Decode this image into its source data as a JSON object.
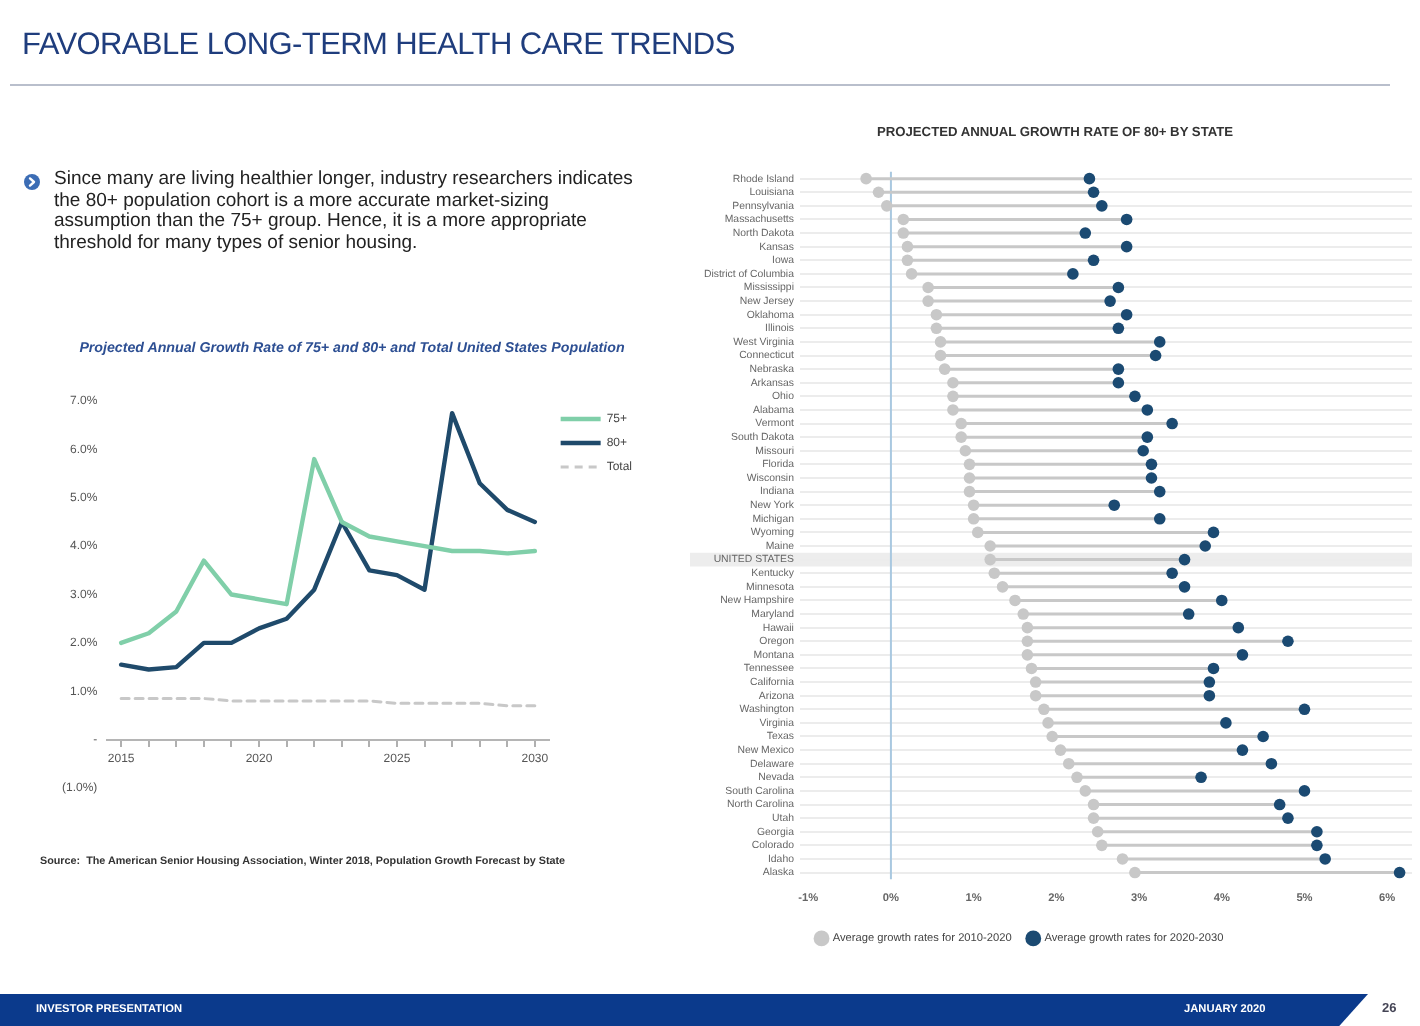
{
  "chart_data": [
    {
      "type": "other",
      "title": "FAVORABLE LONG-TERM HEALTH CARE TRENDS",
      "annotations": [
        "Since many are living healthier longer, industry researchers indicates the 80+ population cohort is a more accurate market-sizing assumption than the 75+ group.  Hence, it is a more appropriate threshold for many types of senior housing.",
        "INVESTOR PRESENTATION",
        "JANUARY 2020",
        "26"
      ]
    },
    {
      "type": "line",
      "title": "Projected Annual Growth Rate of 75+ and 80+ and Total United States Population",
      "categories": [
        "2015",
        null,
        null,
        null,
        null,
        "2020",
        null,
        null,
        null,
        null,
        "2025",
        null,
        null,
        null,
        null,
        "2030"
      ],
      "series": [
        {
          "name": "75+",
          "color": "#80cfa9",
          "values": [
            2.0,
            2.2,
            2.65,
            3.7,
            3.0,
            2.9,
            2.8,
            5.8,
            4.5,
            4.2,
            4.1,
            4.0,
            3.9,
            3.9,
            3.85,
            3.9
          ]
        },
        {
          "name": "80+",
          "color": "#1f4a6b",
          "values": [
            1.55,
            1.45,
            1.5,
            2.0,
            2.0,
            2.3,
            2.5,
            3.1,
            4.5,
            3.5,
            3.4,
            3.1,
            6.75,
            5.3,
            4.75,
            4.5
          ]
        },
        {
          "name": "Total",
          "color": "#c8c8c8",
          "line_style": "dashed",
          "values": [
            0.85,
            0.85,
            0.85,
            0.85,
            0.8,
            0.8,
            0.8,
            0.8,
            0.8,
            0.8,
            0.75,
            0.75,
            0.75,
            0.75,
            0.7,
            0.7
          ]
        }
      ],
      "ylim": [
        -1,
        7
      ],
      "yticks": [
        {
          "value": -1,
          "label": "(1.0%)"
        },
        {
          "value": 0,
          "label": "-"
        },
        {
          "value": 1,
          "label": "1.0%"
        },
        {
          "value": 2,
          "label": "2.0%"
        },
        {
          "value": 3,
          "label": "3.0%"
        },
        {
          "value": 4,
          "label": "4.0%"
        },
        {
          "value": 5,
          "label": "5.0%"
        },
        {
          "value": 6,
          "label": "6.0%"
        },
        {
          "value": 7,
          "label": "7.0%"
        }
      ],
      "legend": "top right",
      "marker": "none",
      "annotations": [
        "Source:  The American Senior Housing Association, Winter 2018, Population Growth Forecast by State"
      ]
    },
    {
      "type": "scatter",
      "orientation": "horizontal",
      "title": "PROJECTED ANNUAL GROWTH RATE OF 80+ BY STATE",
      "categories": [
        "Rhode Island",
        "Louisiana",
        "Pennsylvania",
        "Massachusetts",
        "North Dakota",
        "Kansas",
        "Iowa",
        "District of Columbia",
        "Mississippi",
        "New Jersey",
        "Oklahoma",
        "Illinois",
        "West Virginia",
        "Connecticut",
        "Nebraska",
        "Arkansas",
        "Ohio",
        "Alabama",
        "Vermont",
        "South Dakota",
        "Missouri",
        "Florida",
        "Wisconsin",
        "Indiana",
        "New York",
        "Michigan",
        "Wyoming",
        "Maine",
        "UNITED STATES",
        "Kentucky",
        "Minnesota",
        "New Hampshire",
        "Maryland",
        "Hawaii",
        "Oregon",
        "Montana",
        "Tennessee",
        "California",
        "Arizona",
        "Washington",
        "Virginia",
        "Texas",
        "New Mexico",
        "Delaware",
        "Nevada",
        "South Carolina",
        "North Carolina",
        "Utah",
        "Georgia",
        "Colorado",
        "Idaho",
        "Alaska"
      ],
      "series": [
        {
          "name": "Average growth rates for 2010-2020",
          "color": "#c8c8c8",
          "values": [
            -0.3,
            -0.15,
            -0.05,
            0.15,
            0.15,
            0.2,
            0.2,
            0.25,
            0.45,
            0.45,
            0.55,
            0.55,
            0.6,
            0.6,
            0.65,
            0.75,
            0.75,
            0.75,
            0.85,
            0.85,
            0.9,
            0.95,
            0.95,
            0.95,
            1.0,
            1.0,
            1.05,
            1.2,
            1.2,
            1.25,
            1.35,
            1.5,
            1.6,
            1.65,
            1.65,
            1.65,
            1.7,
            1.75,
            1.75,
            1.85,
            1.9,
            1.95,
            2.05,
            2.15,
            2.25,
            2.35,
            2.45,
            2.45,
            2.5,
            2.55,
            2.8,
            2.95
          ]
        },
        {
          "name": "Average growth rates for 2020-2030",
          "color": "#1b4a72",
          "values": [
            2.4,
            2.45,
            2.55,
            2.85,
            2.35,
            2.85,
            2.45,
            2.2,
            2.75,
            2.65,
            2.85,
            2.75,
            3.25,
            3.2,
            2.75,
            2.75,
            2.95,
            3.1,
            3.4,
            3.1,
            3.05,
            3.15,
            3.15,
            3.25,
            2.7,
            3.25,
            3.9,
            3.8,
            3.55,
            3.4,
            3.55,
            4.0,
            3.6,
            4.2,
            4.8,
            4.25,
            3.9,
            3.85,
            3.85,
            5.0,
            4.05,
            4.5,
            4.25,
            4.6,
            3.75,
            5.0,
            4.7,
            4.8,
            5.15,
            5.15,
            5.25,
            6.15
          ]
        }
      ],
      "xlim": [
        -1.1,
        6.3
      ],
      "xticks": [
        {
          "value": -1,
          "label": "-1%"
        },
        {
          "value": 0,
          "label": "0%"
        },
        {
          "value": 1,
          "label": "1%"
        },
        {
          "value": 2,
          "label": "2%"
        },
        {
          "value": 3,
          "label": "3%"
        },
        {
          "value": 4,
          "label": "4%"
        },
        {
          "value": 5,
          "label": "5%"
        },
        {
          "value": 6,
          "label": "6%"
        }
      ],
      "grid": "y",
      "legend": "bottom left",
      "marker": "circle",
      "ref_lines": [
        {
          "axis": "x",
          "value": 0,
          "color": "#a9c8e0"
        }
      ],
      "bands": [
        {
          "axis": "y",
          "from": "UNITED STATES",
          "to": "UNITED STATES",
          "color": "#ededed"
        }
      ]
    }
  ]
}
